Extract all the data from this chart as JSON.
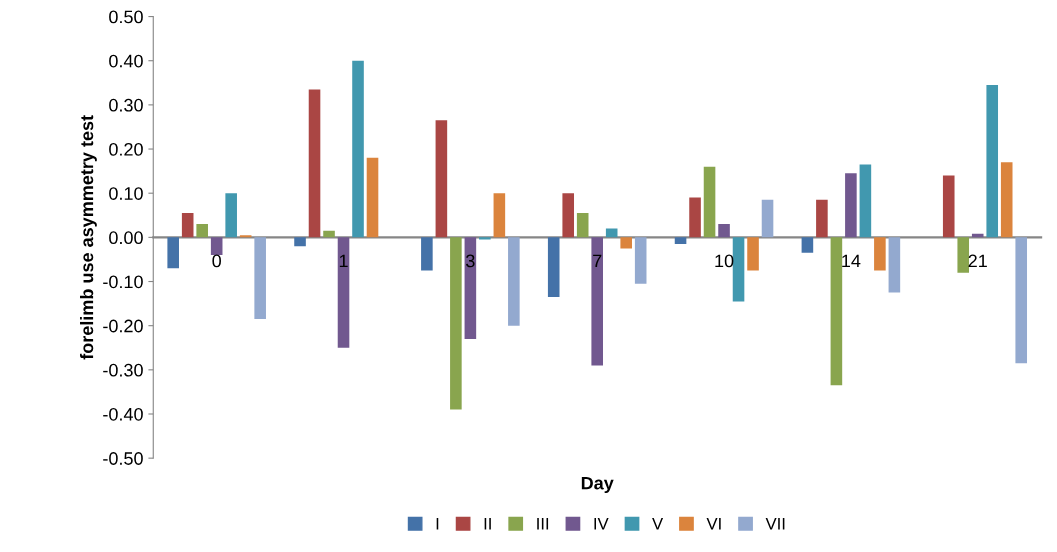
{
  "chart_data": {
    "type": "bar",
    "xlabel": "Day",
    "ylabel": "forelimb use asymmetry test",
    "categories": [
      "0",
      "1",
      "3",
      "7",
      "10",
      "14",
      "21"
    ],
    "series": [
      {
        "name": "I",
        "color": "#4472a8",
        "values": [
          -0.07,
          -0.02,
          -0.075,
          -0.135,
          -0.015,
          -0.035,
          0
        ]
      },
      {
        "name": "II",
        "color": "#aa4644",
        "values": [
          0.055,
          0.335,
          0.265,
          0.1,
          0.09,
          0.085,
          0.14
        ]
      },
      {
        "name": "III",
        "color": "#89a54e",
        "values": [
          0.03,
          0.015,
          -0.39,
          0.055,
          0.16,
          -0.335,
          -0.08
        ]
      },
      {
        "name": "IV",
        "color": "#71588f",
        "values": [
          -0.04,
          -0.25,
          -0.23,
          -0.29,
          0.03,
          0.145,
          0.008
        ]
      },
      {
        "name": "V",
        "color": "#4198af",
        "values": [
          0.1,
          0.4,
          -0.005,
          0.02,
          -0.145,
          0.165,
          0.345
        ]
      },
      {
        "name": "VI",
        "color": "#db843d",
        "values": [
          0.005,
          0.18,
          0.1,
          -0.025,
          -0.075,
          -0.075,
          0.17
        ]
      },
      {
        "name": "VII",
        "color": "#93a9cf",
        "values": [
          -0.185,
          0,
          -0.2,
          -0.105,
          0.085,
          -0.125,
          -0.285
        ]
      }
    ],
    "ylim": [
      -0.5,
      0.5
    ],
    "yticks": [
      {
        "value": -0.5,
        "label": "-0.50"
      },
      {
        "value": -0.4,
        "label": "-0.40"
      },
      {
        "value": -0.3,
        "label": "-0.30"
      },
      {
        "value": -0.2,
        "label": "-0.20"
      },
      {
        "value": -0.1,
        "label": "-0.10"
      },
      {
        "value": 0,
        "label": "0.00"
      },
      {
        "value": 0.1,
        "label": "0.10"
      },
      {
        "value": 0.2,
        "label": "0.20"
      },
      {
        "value": 0.3,
        "label": "0.30"
      },
      {
        "value": 0.4,
        "label": "0.40"
      },
      {
        "value": 0.5,
        "label": "0.50"
      }
    ],
    "grid": false,
    "legend": "bottom"
  }
}
